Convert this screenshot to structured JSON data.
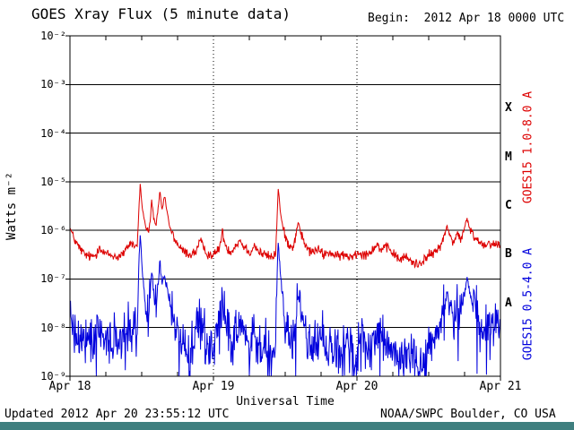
{
  "page": {
    "title": "GOES Xray Flux (5 minute data)",
    "begin_label": "Begin:  2012 Apr 18 0000 UTC",
    "updated_label": "Updated 2012 Apr 20 23:55:12 UTC",
    "credit_label": "NOAA/SWPC Boulder, CO USA"
  },
  "colors": {
    "background": "#ffffff",
    "frame": "#000000",
    "long_channel": "#dd0000",
    "short_channel": "#0000dd",
    "footer_bar": "#3f7f7f"
  },
  "chart_data": {
    "type": "line",
    "title": "GOES Xray Flux (5 minute data)",
    "xlabel": "Universal Time",
    "ylabel": "Watts m⁻²",
    "x_unit": "hours since 2012 Apr 18 0000 UTC",
    "x_range": [
      0,
      72
    ],
    "y_log10_range": [
      -9,
      -2
    ],
    "x_ticks": [
      {
        "hour": 0,
        "label": "Apr 18"
      },
      {
        "hour": 24,
        "label": "Apr 19"
      },
      {
        "hour": 48,
        "label": "Apr 20"
      },
      {
        "hour": 72,
        "label": "Apr 21"
      }
    ],
    "y_ticks": [
      {
        "log10": -2,
        "label": "10⁻²"
      },
      {
        "log10": -3,
        "label": "10⁻³"
      },
      {
        "log10": -4,
        "label": "10⁻⁴"
      },
      {
        "log10": -5,
        "label": "10⁻⁵"
      },
      {
        "log10": -6,
        "label": "10⁻⁶"
      },
      {
        "log10": -7,
        "label": "10⁻⁷"
      },
      {
        "log10": -8,
        "label": "10⁻⁸"
      },
      {
        "log10": -9,
        "label": "10⁻⁹"
      }
    ],
    "decade_gridlines_log10": [
      -3,
      -4,
      -5,
      -6,
      -7,
      -8
    ],
    "day_gridlines_hours": [
      24,
      48
    ],
    "minor_tick_hours": 6,
    "flare_classes": [
      {
        "label": "X",
        "log10_center": -3.5
      },
      {
        "label": "M",
        "log10_center": -4.5
      },
      {
        "label": "C",
        "log10_center": -5.5
      },
      {
        "label": "B",
        "log10_center": -6.5
      },
      {
        "label": "A",
        "log10_center": -7.5
      }
    ],
    "series": [
      {
        "name": "GOES15 1.0-8.0 A",
        "color": "#dd0000",
        "noise_log10": 0.05,
        "noise_taper_above": -6.0,
        "noise_taper_factor": 0.4,
        "points": [
          [
            0,
            -5.95
          ],
          [
            0.3,
            -6.05
          ],
          [
            0.8,
            -6.2
          ],
          [
            1.5,
            -6.35
          ],
          [
            2.5,
            -6.5
          ],
          [
            3.5,
            -6.55
          ],
          [
            4.4,
            -6.5
          ],
          [
            4.9,
            -6.3
          ],
          [
            5.4,
            -6.45
          ],
          [
            6.5,
            -6.5
          ],
          [
            8,
            -6.55
          ],
          [
            9.2,
            -6.45
          ],
          [
            9.8,
            -6.3
          ],
          [
            10.3,
            -6.25
          ],
          [
            10.9,
            -6.35
          ],
          [
            11.3,
            -6.25
          ],
          [
            11.55,
            -5.5
          ],
          [
            11.75,
            -5.05
          ],
          [
            12.1,
            -5.55
          ],
          [
            12.6,
            -5.9
          ],
          [
            13.1,
            -6.05
          ],
          [
            13.45,
            -5.8
          ],
          [
            13.65,
            -5.35
          ],
          [
            14,
            -5.75
          ],
          [
            14.4,
            -5.9
          ],
          [
            14.85,
            -5.45
          ],
          [
            15.05,
            -5.2
          ],
          [
            15.4,
            -5.6
          ],
          [
            15.8,
            -5.3
          ],
          [
            16.1,
            -5.5
          ],
          [
            16.7,
            -5.95
          ],
          [
            17.6,
            -6.2
          ],
          [
            18.6,
            -6.4
          ],
          [
            20,
            -6.5
          ],
          [
            21,
            -6.45
          ],
          [
            21.8,
            -6.2
          ],
          [
            22.4,
            -6.4
          ],
          [
            23.2,
            -6.5
          ],
          [
            24.2,
            -6.5
          ],
          [
            25,
            -6.35
          ],
          [
            25.5,
            -6.05
          ],
          [
            26,
            -6.3
          ],
          [
            26.8,
            -6.45
          ],
          [
            27.8,
            -6.3
          ],
          [
            28.4,
            -6.2
          ],
          [
            29.2,
            -6.35
          ],
          [
            30.2,
            -6.45
          ],
          [
            30.9,
            -6.3
          ],
          [
            31.6,
            -6.45
          ],
          [
            32.6,
            -6.5
          ],
          [
            33.6,
            -6.55
          ],
          [
            34.4,
            -6.5
          ],
          [
            34.65,
            -5.7
          ],
          [
            34.85,
            -5.1
          ],
          [
            35.2,
            -5.65
          ],
          [
            35.7,
            -6
          ],
          [
            36.4,
            -6.25
          ],
          [
            37.3,
            -6.35
          ],
          [
            37.9,
            -6.05
          ],
          [
            38.2,
            -5.8
          ],
          [
            38.6,
            -6.05
          ],
          [
            39.3,
            -6.3
          ],
          [
            40.2,
            -6.45
          ],
          [
            41.5,
            -6.4
          ],
          [
            42.5,
            -6.5
          ],
          [
            43.5,
            -6.45
          ],
          [
            44.5,
            -6.55
          ],
          [
            45.5,
            -6.5
          ],
          [
            46.5,
            -6.55
          ],
          [
            47.5,
            -6.5
          ],
          [
            48.5,
            -6.45
          ],
          [
            49.5,
            -6.5
          ],
          [
            50.5,
            -6.4
          ],
          [
            51.3,
            -6.3
          ],
          [
            52.2,
            -6.4
          ],
          [
            53.2,
            -6.35
          ],
          [
            54.2,
            -6.5
          ],
          [
            55.2,
            -6.6
          ],
          [
            56.2,
            -6.55
          ],
          [
            57.2,
            -6.65
          ],
          [
            58.2,
            -6.7
          ],
          [
            59.2,
            -6.6
          ],
          [
            60.2,
            -6.5
          ],
          [
            61.2,
            -6.45
          ],
          [
            61.9,
            -6.3
          ],
          [
            62.6,
            -6.15
          ],
          [
            63.05,
            -5.9
          ],
          [
            63.5,
            -6.1
          ],
          [
            64.1,
            -6.25
          ],
          [
            64.8,
            -6.05
          ],
          [
            65.3,
            -6.2
          ],
          [
            65.9,
            -6
          ],
          [
            66.4,
            -5.75
          ],
          [
            66.8,
            -5.95
          ],
          [
            67.4,
            -6.1
          ],
          [
            68.2,
            -6.2
          ],
          [
            69.2,
            -6.3
          ],
          [
            70.2,
            -6.25
          ],
          [
            71.2,
            -6.3
          ],
          [
            72,
            -6.28
          ]
        ]
      },
      {
        "name": "GOES15 0.5-4.0 A",
        "color": "#0000dd",
        "noise_log10": 0.25,
        "noise_taper_above": -7.5,
        "noise_taper_factor": 0.25,
        "down_spike_prob": 0.07,
        "down_spike_mag": 1.0,
        "points": [
          [
            0,
            -7.6
          ],
          [
            0.35,
            -7.9
          ],
          [
            1,
            -8.1
          ],
          [
            2,
            -8.25
          ],
          [
            3.2,
            -8.35
          ],
          [
            4.4,
            -8.25
          ],
          [
            4.9,
            -8
          ],
          [
            5.5,
            -8.3
          ],
          [
            6.5,
            -8.45
          ],
          [
            7.5,
            -8.3
          ],
          [
            8.5,
            -8.4
          ],
          [
            9.3,
            -8.2
          ],
          [
            9.9,
            -8
          ],
          [
            10.5,
            -8.1
          ],
          [
            11.3,
            -8
          ],
          [
            11.55,
            -6.5
          ],
          [
            11.75,
            -6
          ],
          [
            12.1,
            -6.9
          ],
          [
            12.6,
            -7.5
          ],
          [
            13.1,
            -7.85
          ],
          [
            13.45,
            -7.4
          ],
          [
            13.65,
            -6.75
          ],
          [
            14,
            -7.3
          ],
          [
            14.4,
            -7.6
          ],
          [
            14.85,
            -7
          ],
          [
            15.05,
            -6.6
          ],
          [
            15.4,
            -7.15
          ],
          [
            15.8,
            -6.9
          ],
          [
            16.1,
            -7.05
          ],
          [
            16.7,
            -7.6
          ],
          [
            17.6,
            -8
          ],
          [
            18.6,
            -8.25
          ],
          [
            19.6,
            -8.35
          ],
          [
            20.6,
            -8.25
          ],
          [
            21.5,
            -8.05
          ],
          [
            21.9,
            -7.95
          ],
          [
            22.5,
            -8.2
          ],
          [
            23.2,
            -8.35
          ],
          [
            24.2,
            -8.3
          ],
          [
            25,
            -8.05
          ],
          [
            25.5,
            -7.5
          ],
          [
            26,
            -7.9
          ],
          [
            26.8,
            -8.2
          ],
          [
            27.8,
            -8
          ],
          [
            28.4,
            -7.9
          ],
          [
            29.2,
            -8.1
          ],
          [
            30.2,
            -8.3
          ],
          [
            30.9,
            -8.05
          ],
          [
            31.6,
            -8.2
          ],
          [
            32.6,
            -8.4
          ],
          [
            33.6,
            -8.5
          ],
          [
            34.4,
            -8.3
          ],
          [
            34.65,
            -6.9
          ],
          [
            34.85,
            -6.15
          ],
          [
            35.2,
            -6.95
          ],
          [
            35.7,
            -7.5
          ],
          [
            36.4,
            -7.95
          ],
          [
            37.3,
            -8.2
          ],
          [
            37.9,
            -7.6
          ],
          [
            38.2,
            -7.3
          ],
          [
            38.6,
            -7.7
          ],
          [
            39.3,
            -8.1
          ],
          [
            40.2,
            -8.3
          ],
          [
            41.2,
            -8.4
          ],
          [
            42.2,
            -8.3
          ],
          [
            43.2,
            -8.45
          ],
          [
            44.2,
            -8.4
          ],
          [
            45.2,
            -8.5
          ],
          [
            46.2,
            -8.4
          ],
          [
            47.2,
            -8.5
          ],
          [
            48.2,
            -8.4
          ],
          [
            49.2,
            -8.3
          ],
          [
            50.2,
            -8.4
          ],
          [
            51.3,
            -8.2
          ],
          [
            52.2,
            -8.3
          ],
          [
            53.2,
            -8.4
          ],
          [
            54.2,
            -8.5
          ],
          [
            55.2,
            -8.6
          ],
          [
            56.2,
            -8.7
          ],
          [
            57.2,
            -8.6
          ],
          [
            58.2,
            -8.7
          ],
          [
            59.2,
            -8.55
          ],
          [
            60.2,
            -8.4
          ],
          [
            61.2,
            -8.3
          ],
          [
            61.9,
            -8
          ],
          [
            62.6,
            -7.7
          ],
          [
            63.05,
            -7.3
          ],
          [
            63.5,
            -7.6
          ],
          [
            64.1,
            -7.8
          ],
          [
            64.8,
            -7.5
          ],
          [
            65.3,
            -7.7
          ],
          [
            65.9,
            -7.35
          ],
          [
            66.4,
            -7
          ],
          [
            66.8,
            -7.2
          ],
          [
            67.4,
            -7.5
          ],
          [
            68.2,
            -7.7
          ],
          [
            69.2,
            -7.9
          ],
          [
            70.2,
            -7.8
          ],
          [
            71.2,
            -8
          ],
          [
            72,
            -7.9
          ]
        ]
      }
    ]
  }
}
